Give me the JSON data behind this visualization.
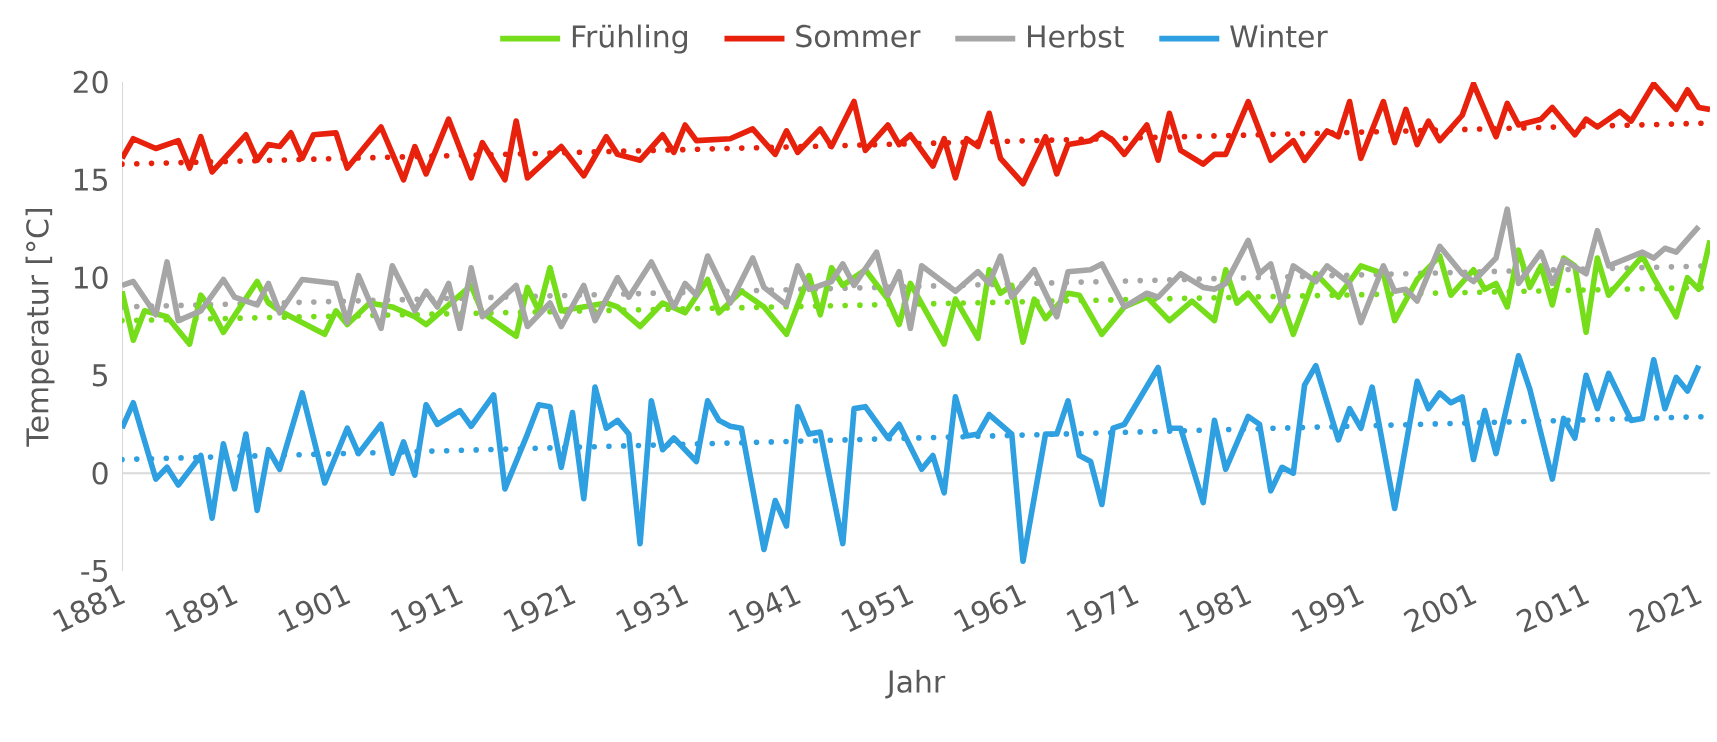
{
  "chart_data": {
    "type": "line",
    "xlabel": "Jahr",
    "ylabel": "Temperatur [°C]",
    "legend": "top",
    "marker": "none",
    "line_style": "solid",
    "xlim": [
      1881,
      2022
    ],
    "xticks": [
      1881,
      1891,
      1901,
      1911,
      1921,
      1931,
      1941,
      1951,
      1961,
      1971,
      1981,
      1991,
      2001,
      2011,
      2021
    ],
    "ylim": [
      -5,
      20
    ],
    "yticks": [
      -5,
      0,
      5,
      10,
      15,
      20
    ],
    "ref_lines": [
      {
        "axis": "y",
        "value": 0,
        "color": "#d9d9d9"
      }
    ],
    "series": [
      {
        "name": "Frühling",
        "color": "#76dd1a",
        "x": [
          1881,
          1882,
          1883,
          1885,
          1887,
          1888,
          1889,
          1890,
          1893,
          1894,
          1895,
          1896,
          1899,
          1900,
          1901,
          1903,
          1905,
          1907,
          1908,
          1912,
          1913,
          1916,
          1917,
          1918,
          1919,
          1920,
          1922,
          1924,
          1925,
          1927,
          1929,
          1931,
          1933,
          1934,
          1936,
          1938,
          1940,
          1942,
          1943,
          1944,
          1945,
          1947,
          1949,
          1950,
          1951,
          1954,
          1955,
          1957,
          1958,
          1959,
          1960,
          1961,
          1962,
          1963,
          1965,
          1966,
          1968,
          1970,
          1972,
          1974,
          1976,
          1978,
          1979,
          1980,
          1981,
          1983,
          1984,
          1985,
          1987,
          1989,
          1991,
          1993,
          1994,
          1996,
          1998,
          1999,
          2001,
          2002,
          2003,
          2004,
          2005,
          2006,
          2007,
          2008,
          2009,
          2010,
          2011,
          2012,
          2013,
          2016,
          2017,
          2019,
          2020,
          2021,
          2022
        ],
        "values": [
          9.3,
          6.8,
          8.3,
          8.0,
          6.6,
          9.1,
          8.3,
          7.2,
          9.8,
          8.7,
          8.3,
          8.0,
          7.1,
          8.3,
          7.6,
          8.7,
          8.5,
          8.0,
          7.6,
          9.6,
          8.2,
          7.0,
          9.5,
          8.3,
          10.5,
          8.3,
          8.5,
          8.7,
          8.5,
          7.5,
          8.7,
          8.2,
          9.9,
          8.2,
          9.3,
          8.5,
          7.1,
          10.1,
          8.1,
          10.5,
          9.6,
          10.4,
          8.9,
          7.6,
          9.7,
          6.6,
          8.9,
          6.9,
          10.4,
          9.2,
          9.6,
          6.7,
          8.9,
          7.9,
          9.2,
          9.1,
          7.1,
          8.5,
          9.0,
          7.8,
          8.8,
          7.8,
          10.4,
          8.7,
          9.2,
          7.8,
          8.8,
          7.1,
          10.2,
          9.0,
          10.6,
          10.2,
          7.8,
          9.9,
          11.1,
          9.1,
          10.4,
          9.4,
          9.7,
          8.5,
          11.4,
          9.5,
          10.6,
          8.6,
          11.0,
          10.6,
          7.2,
          11.0,
          9.1,
          11.1,
          10.0,
          8.0,
          10.0,
          9.4,
          11.9
        ]
      },
      {
        "name": "Sommer",
        "color": "#e8210c",
        "x": [
          1881,
          1882,
          1884,
          1886,
          1887,
          1888,
          1889,
          1892,
          1893,
          1894,
          1895,
          1896,
          1897,
          1898,
          1900,
          1901,
          1904,
          1906,
          1907,
          1908,
          1910,
          1912,
          1913,
          1915,
          1916,
          1917,
          1920,
          1922,
          1924,
          1925,
          1927,
          1929,
          1930,
          1931,
          1932,
          1935,
          1937,
          1939,
          1940,
          1941,
          1943,
          1944,
          1946,
          1947,
          1949,
          1950,
          1951,
          1953,
          1954,
          1955,
          1956,
          1957,
          1958,
          1959,
          1961,
          1963,
          1964,
          1965,
          1967,
          1968,
          1969,
          1970,
          1972,
          1973,
          1974,
          1975,
          1977,
          1978,
          1979,
          1981,
          1983,
          1985,
          1986,
          1988,
          1989,
          1990,
          1991,
          1993,
          1994,
          1995,
          1996,
          1997,
          1998,
          2000,
          2001,
          2003,
          2004,
          2005,
          2007,
          2008,
          2010,
          2011,
          2012,
          2014,
          2015,
          2017,
          2019,
          2020,
          2021,
          2022
        ],
        "values": [
          16.1,
          17.1,
          16.6,
          17.0,
          15.6,
          17.2,
          15.4,
          17.3,
          16.0,
          16.8,
          16.7,
          17.4,
          16.1,
          17.3,
          17.4,
          15.6,
          17.7,
          15.0,
          16.7,
          15.3,
          18.1,
          15.1,
          16.9,
          15.0,
          18.0,
          15.1,
          16.7,
          15.2,
          17.2,
          16.3,
          16.0,
          17.3,
          16.4,
          17.8,
          17.0,
          17.1,
          17.6,
          16.3,
          17.5,
          16.4,
          17.6,
          16.7,
          19.0,
          16.5,
          17.8,
          16.8,
          17.3,
          15.7,
          17.1,
          15.1,
          17.1,
          16.7,
          18.4,
          16.1,
          14.8,
          17.2,
          15.3,
          16.8,
          17.0,
          17.4,
          17.0,
          16.3,
          17.8,
          16.0,
          18.4,
          16.5,
          15.8,
          16.3,
          16.3,
          19.0,
          16.0,
          17.0,
          16.0,
          17.5,
          17.2,
          19.0,
          16.1,
          19.0,
          16.9,
          18.6,
          16.8,
          18.0,
          17.0,
          18.3,
          19.9,
          17.2,
          18.9,
          17.8,
          18.1,
          18.7,
          17.3,
          18.1,
          17.7,
          18.5,
          18.0,
          19.9,
          18.6,
          19.6,
          18.7,
          18.6
        ]
      },
      {
        "name": "Herbst",
        "color": "#a6a6a6",
        "x": [
          1881,
          1882,
          1884,
          1885,
          1886,
          1888,
          1890,
          1891,
          1893,
          1894,
          1895,
          1897,
          1900,
          1901,
          1902,
          1904,
          1905,
          1907,
          1908,
          1909,
          1910,
          1911,
          1912,
          1913,
          1916,
          1917,
          1919,
          1920,
          1922,
          1923,
          1925,
          1926,
          1928,
          1930,
          1931,
          1932,
          1933,
          1935,
          1937,
          1938,
          1940,
          1941,
          1942,
          1944,
          1945,
          1946,
          1948,
          1949,
          1950,
          1951,
          1952,
          1955,
          1957,
          1958,
          1959,
          1960,
          1962,
          1964,
          1965,
          1967,
          1968,
          1970,
          1972,
          1973,
          1975,
          1977,
          1978,
          1979,
          1981,
          1982,
          1983,
          1984,
          1985,
          1987,
          1988,
          1990,
          1991,
          1993,
          1994,
          1995,
          1996,
          1998,
          2000,
          2001,
          2003,
          2004,
          2005,
          2007,
          2008,
          2009,
          2011,
          2012,
          2013,
          2016,
          2017,
          2018,
          2019,
          2021
        ],
        "values": [
          9.6,
          9.8,
          8.1,
          10.8,
          7.8,
          8.3,
          9.9,
          9.0,
          8.6,
          9.7,
          8.2,
          9.9,
          9.7,
          7.7,
          10.1,
          7.4,
          10.6,
          8.3,
          9.3,
          8.5,
          9.7,
          7.4,
          10.5,
          8.0,
          9.6,
          7.5,
          8.7,
          7.5,
          9.6,
          7.8,
          10.0,
          9.0,
          10.8,
          8.5,
          9.7,
          9.1,
          11.1,
          8.7,
          11.0,
          9.5,
          8.6,
          10.6,
          9.4,
          9.8,
          10.7,
          9.6,
          11.3,
          9.1,
          10.3,
          7.4,
          10.6,
          9.3,
          10.3,
          9.7,
          11.1,
          9.0,
          10.4,
          8.0,
          10.3,
          10.4,
          10.7,
          8.5,
          9.2,
          9.0,
          10.2,
          9.5,
          9.4,
          9.7,
          11.9,
          10.2,
          10.7,
          8.6,
          10.6,
          9.8,
          10.6,
          9.7,
          7.7,
          10.6,
          9.3,
          9.4,
          8.8,
          11.6,
          10.2,
          9.8,
          11.0,
          13.5,
          9.7,
          11.3,
          9.7,
          10.9,
          10.2,
          12.4,
          10.6,
          11.3,
          11.0,
          11.5,
          11.3,
          12.6
        ]
      },
      {
        "name": "Winter",
        "color": "#2e9fe0",
        "x": [
          1881,
          1882,
          1884,
          1885,
          1886,
          1888,
          1889,
          1890,
          1891,
          1892,
          1893,
          1894,
          1895,
          1897,
          1899,
          1901,
          1902,
          1904,
          1905,
          1906,
          1907,
          1908,
          1909,
          1911,
          1912,
          1914,
          1915,
          1917,
          1918,
          1919,
          1920,
          1921,
          1922,
          1923,
          1924,
          1925,
          1926,
          1927,
          1928,
          1929,
          1930,
          1932,
          1933,
          1934,
          1935,
          1936,
          1938,
          1939,
          1940,
          1941,
          1942,
          1943,
          1945,
          1946,
          1947,
          1949,
          1950,
          1952,
          1953,
          1954,
          1955,
          1956,
          1957,
          1958,
          1960,
          1961,
          1963,
          1964,
          1965,
          1966,
          1967,
          1968,
          1969,
          1970,
          1973,
          1974,
          1975,
          1977,
          1978,
          1979,
          1981,
          1982,
          1983,
          1984,
          1985,
          1986,
          1987,
          1989,
          1990,
          1991,
          1992,
          1994,
          1996,
          1997,
          1998,
          1999,
          2000,
          2001,
          2002,
          2003,
          2005,
          2006,
          2008,
          2009,
          2010,
          2011,
          2012,
          2013,
          2015,
          2016,
          2017,
          2018,
          2019,
          2020,
          2021
        ],
        "values": [
          2.3,
          3.6,
          -0.3,
          0.3,
          -0.6,
          0.9,
          -2.3,
          1.5,
          -0.8,
          2.0,
          -1.9,
          1.2,
          0.2,
          4.1,
          -0.5,
          2.3,
          1.0,
          2.5,
          0.0,
          1.6,
          -0.1,
          3.5,
          2.5,
          3.2,
          2.4,
          4.0,
          -0.8,
          2.0,
          3.5,
          3.4,
          0.3,
          3.1,
          -1.3,
          4.4,
          2.3,
          2.7,
          2.0,
          -3.6,
          3.7,
          1.2,
          1.8,
          0.6,
          3.7,
          2.7,
          2.4,
          2.3,
          -3.9,
          -1.4,
          -2.7,
          3.4,
          2.0,
          2.1,
          -3.6,
          3.3,
          3.4,
          1.8,
          2.5,
          0.2,
          0.9,
          -1.0,
          3.9,
          1.9,
          2.0,
          3.0,
          2.0,
          -4.5,
          2.0,
          2.0,
          3.7,
          0.9,
          0.6,
          -1.6,
          2.3,
          2.5,
          5.4,
          2.3,
          2.3,
          -1.5,
          2.7,
          0.2,
          2.9,
          2.5,
          -0.9,
          0.3,
          0.0,
          4.5,
          5.5,
          1.7,
          3.3,
          2.3,
          4.4,
          -1.8,
          4.7,
          3.3,
          4.1,
          3.6,
          3.9,
          0.7,
          3.2,
          1.0,
          6.0,
          4.3,
          -0.3,
          2.8,
          1.8,
          5.0,
          3.3,
          5.1,
          2.7,
          2.8,
          5.8,
          3.3,
          4.9,
          4.2,
          5.5
        ]
      },
      {
        "type": "line",
        "line_style": "dotted",
        "color": "#76dd1a",
        "x": [
          1881,
          2022
        ],
        "values": [
          7.8,
          9.5
        ]
      },
      {
        "type": "line",
        "line_style": "dotted",
        "color": "#e8210c",
        "x": [
          1881,
          2022
        ],
        "values": [
          15.8,
          17.9
        ]
      },
      {
        "type": "line",
        "line_style": "dotted",
        "color": "#a6a6a6",
        "x": [
          1881,
          2022
        ],
        "values": [
          8.5,
          10.6
        ]
      },
      {
        "type": "line",
        "line_style": "dotted",
        "color": "#2e9fe0",
        "x": [
          1881,
          2022
        ],
        "values": [
          0.7,
          2.9
        ]
      }
    ]
  }
}
